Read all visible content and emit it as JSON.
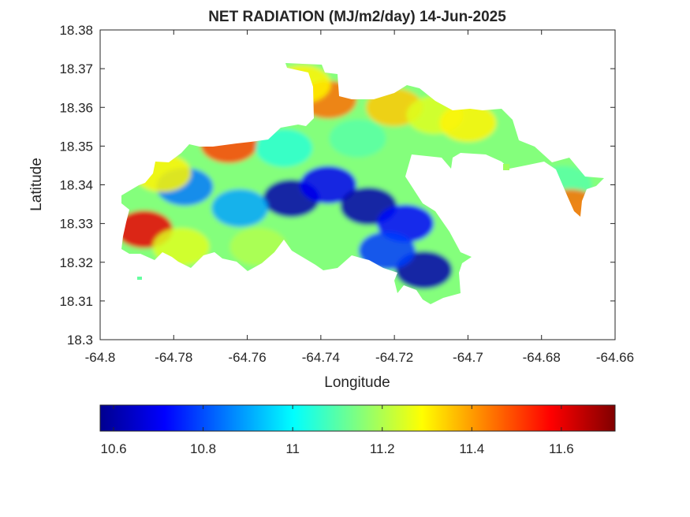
{
  "chart_data": {
    "type": "heatmap",
    "title": "NET RADIATION (MJ/m2/day) 14-Jun-2025",
    "xlabel": "Longitude",
    "ylabel": "Latitude",
    "xlim": [
      -64.8,
      -64.66
    ],
    "ylim": [
      18.3,
      18.38
    ],
    "x_ticks": [
      -64.8,
      -64.78,
      -64.76,
      -64.74,
      -64.72,
      -64.7,
      -64.68,
      -64.66
    ],
    "x_tick_labels": [
      "-64.8",
      "-64.78",
      "-64.76",
      "-64.74",
      "-64.72",
      "-64.7",
      "-64.68",
      "-64.66"
    ],
    "y_ticks": [
      18.3,
      18.31,
      18.32,
      18.33,
      18.34,
      18.35,
      18.36,
      18.37,
      18.38
    ],
    "y_tick_labels": [
      "18.3",
      "18.31",
      "18.32",
      "18.33",
      "18.34",
      "18.35",
      "18.36",
      "18.37",
      "18.38"
    ],
    "colormap": "jet",
    "colorbar": {
      "orientation": "horizontal",
      "placement": "below",
      "clim": [
        10.57,
        11.72
      ],
      "ticks": [
        10.6,
        10.8,
        11,
        11.2,
        11.4,
        11.6
      ],
      "tick_labels": [
        "10.6",
        "10.8",
        "11",
        "11.2",
        "11.4",
        "11.6"
      ]
    },
    "regions": [
      {
        "lon": -64.788,
        "lat": 18.3285,
        "value": 11.6
      },
      {
        "lon": -64.777,
        "lat": 18.3395,
        "value": 10.85
      },
      {
        "lon": -64.765,
        "lat": 18.3505,
        "value": 11.5
      },
      {
        "lon": -64.748,
        "lat": 18.3365,
        "value": 10.62
      },
      {
        "lon": -64.738,
        "lat": 18.34,
        "value": 10.7
      },
      {
        "lon": -64.727,
        "lat": 18.3345,
        "value": 10.62
      },
      {
        "lon": -64.717,
        "lat": 18.33,
        "value": 10.72
      },
      {
        "lon": -64.712,
        "lat": 18.318,
        "value": 10.62
      },
      {
        "lon": -64.738,
        "lat": 18.362,
        "value": 11.45
      },
      {
        "lon": -64.72,
        "lat": 18.36,
        "value": 11.35
      },
      {
        "lon": -64.745,
        "lat": 18.366,
        "value": 11.3
      },
      {
        "lon": -64.783,
        "lat": 18.343,
        "value": 11.3
      },
      {
        "lon": -64.778,
        "lat": 18.324,
        "value": 11.25
      },
      {
        "lon": -64.757,
        "lat": 18.324,
        "value": 11.2
      },
      {
        "lon": -64.75,
        "lat": 18.3495,
        "value": 11.05
      },
      {
        "lon": -64.73,
        "lat": 18.352,
        "value": 11.1
      },
      {
        "lon": -64.709,
        "lat": 18.358,
        "value": 11.25
      },
      {
        "lon": -64.7,
        "lat": 18.356,
        "value": 11.3
      },
      {
        "lon": -64.674,
        "lat": 18.34,
        "value": 11.1
      },
      {
        "lon": -64.672,
        "lat": 18.334,
        "value": 11.45
      },
      {
        "lon": -64.762,
        "lat": 18.334,
        "value": 10.9
      },
      {
        "lon": -64.722,
        "lat": 18.323,
        "value": 10.78
      }
    ]
  }
}
